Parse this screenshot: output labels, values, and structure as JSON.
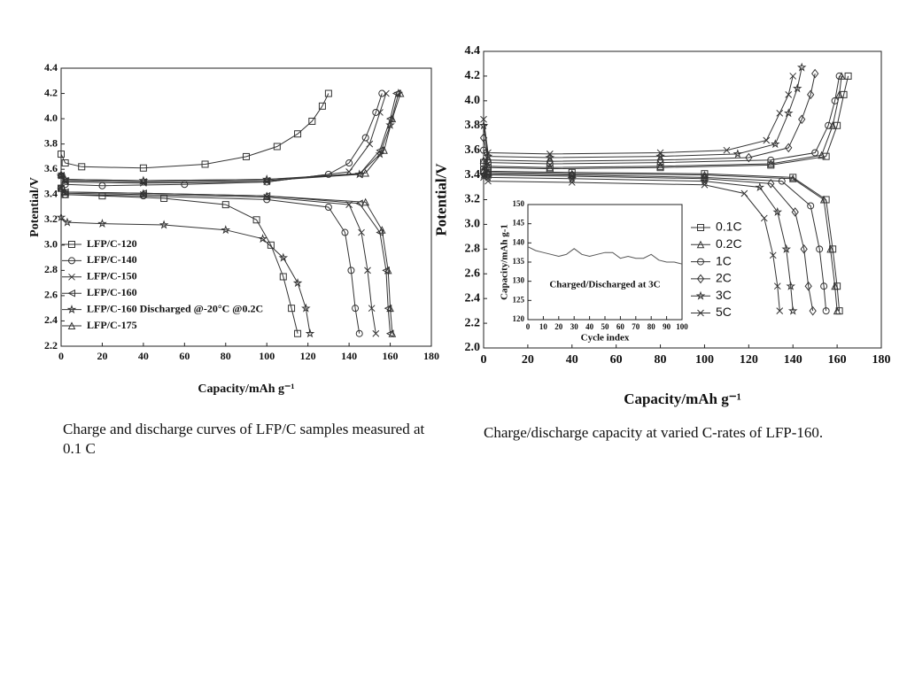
{
  "chart_data": [
    {
      "type": "line",
      "x_label": "Capacity/mAh g⁻¹",
      "y_label": "Potential/V",
      "xlim": [
        0,
        180
      ],
      "ylim": [
        2.2,
        4.4
      ],
      "xticks": [
        0,
        20,
        40,
        60,
        80,
        100,
        120,
        140,
        160,
        180
      ],
      "yticks": [
        2.2,
        2.4,
        2.6,
        2.8,
        {
          "value": 3,
          "label": "3.0"
        },
        3.2,
        3.4,
        3.6,
        3.8,
        {
          "value": 4,
          "label": "4.0"
        },
        4.2,
        4.4
      ],
      "series": [
        {
          "name": "LFP/C-120",
          "color": "#333333",
          "marker": "square",
          "x": [
            0,
            2,
            10,
            40,
            70,
            90,
            105,
            115,
            122,
            127,
            130,
            null,
            0,
            2,
            20,
            50,
            80,
            95,
            102,
            108,
            112,
            115
          ],
          "values": [
            3.72,
            3.65,
            3.62,
            3.61,
            3.64,
            3.7,
            3.78,
            3.88,
            3.98,
            4.1,
            4.2,
            null,
            3.45,
            3.4,
            3.39,
            3.37,
            3.32,
            3.2,
            3.0,
            2.75,
            2.5,
            2.3
          ]
        },
        {
          "name": "LFP/C-140",
          "color": "#333333",
          "marker": "circle",
          "x": [
            0,
            2,
            20,
            60,
            100,
            130,
            140,
            148,
            153,
            156,
            null,
            0,
            2,
            40,
            100,
            130,
            138,
            141,
            143,
            145
          ],
          "values": [
            3.55,
            3.48,
            3.47,
            3.48,
            3.5,
            3.56,
            3.65,
            3.85,
            4.05,
            4.2,
            null,
            3.45,
            3.4,
            3.39,
            3.36,
            3.3,
            3.1,
            2.8,
            2.5,
            2.3
          ]
        },
        {
          "name": "LFP/C-150",
          "color": "#333333",
          "marker": "x",
          "x": [
            0,
            2,
            40,
            100,
            140,
            150,
            155,
            158,
            null,
            0,
            2,
            40,
            100,
            140,
            146,
            149,
            151,
            153
          ],
          "values": [
            3.55,
            3.5,
            3.49,
            3.5,
            3.58,
            3.8,
            4.05,
            4.2,
            null,
            3.45,
            3.41,
            3.4,
            3.38,
            3.32,
            3.1,
            2.8,
            2.5,
            2.3
          ]
        },
        {
          "name": "LFP/C-160",
          "color": "#333333",
          "marker": "tri-left",
          "x": [
            0,
            2,
            40,
            100,
            145,
            155,
            160,
            163,
            null,
            0,
            2,
            40,
            100,
            145,
            155,
            158,
            159,
            160
          ],
          "values": [
            3.55,
            3.51,
            3.5,
            3.51,
            3.56,
            3.75,
            4.0,
            4.2,
            null,
            3.45,
            3.42,
            3.41,
            3.39,
            3.33,
            3.1,
            2.8,
            2.5,
            2.3
          ]
        },
        {
          "name": "LFP/C-160 Discharged @-20°C @0.2C",
          "color": "#333333",
          "marker": "star",
          "x": [
            0,
            2,
            40,
            100,
            145,
            155,
            160,
            164,
            null,
            0,
            3,
            20,
            50,
            80,
            98,
            108,
            115,
            119,
            121
          ],
          "values": [
            3.55,
            3.52,
            3.51,
            3.52,
            3.56,
            3.72,
            3.95,
            4.2,
            null,
            3.22,
            3.18,
            3.17,
            3.16,
            3.12,
            3.05,
            2.9,
            2.7,
            2.5,
            2.3
          ]
        },
        {
          "name": "LFP/C-175",
          "color": "#333333",
          "marker": "triangle",
          "x": [
            0,
            2,
            40,
            100,
            148,
            157,
            161,
            165,
            null,
            0,
            2,
            40,
            100,
            148,
            156,
            159,
            160,
            161
          ],
          "values": [
            3.56,
            3.52,
            3.51,
            3.52,
            3.57,
            3.75,
            4.0,
            4.2,
            null,
            3.45,
            3.42,
            3.41,
            3.39,
            3.34,
            3.12,
            2.8,
            2.5,
            2.3
          ]
        }
      ]
    },
    {
      "type": "line",
      "x_label": "Capacity/mAh g⁻¹",
      "y_label": "Potential/V",
      "xlim": [
        0,
        180
      ],
      "ylim": [
        2.0,
        4.4
      ],
      "xticks": [
        0,
        20,
        40,
        60,
        80,
        100,
        120,
        140,
        160,
        180
      ],
      "yticks": [
        {
          "value": 2,
          "label": "2.0"
        },
        2.2,
        2.4,
        2.6,
        2.8,
        {
          "value": 3,
          "label": "3.0"
        },
        3.2,
        3.4,
        3.6,
        3.8,
        {
          "value": 4,
          "label": "4.0"
        },
        4.2,
        4.4
      ],
      "series": [
        {
          "name": "0.1C",
          "color": "#333333",
          "marker": "square",
          "x": [
            0,
            2,
            30,
            80,
            130,
            155,
            160,
            163,
            165,
            null,
            0,
            2,
            40,
            100,
            140,
            155,
            158,
            160,
            161
          ],
          "values": [
            3.5,
            3.46,
            3.45,
            3.46,
            3.48,
            3.55,
            3.8,
            4.05,
            4.2,
            null,
            3.44,
            3.43,
            3.42,
            3.41,
            3.38,
            3.2,
            2.8,
            2.5,
            2.3
          ]
        },
        {
          "name": "0.2C",
          "color": "#333333",
          "marker": "triangle",
          "x": [
            0,
            2,
            30,
            80,
            130,
            153,
            158,
            161,
            162,
            null,
            0,
            2,
            40,
            100,
            140,
            154,
            157,
            159,
            160
          ],
          "values": [
            3.52,
            3.47,
            3.46,
            3.47,
            3.49,
            3.56,
            3.8,
            4.05,
            4.2,
            null,
            3.44,
            3.42,
            3.41,
            3.4,
            3.37,
            3.2,
            2.8,
            2.5,
            2.3
          ]
        },
        {
          "name": "1C",
          "color": "#333333",
          "marker": "circle",
          "x": [
            0,
            2,
            30,
            80,
            130,
            150,
            156,
            159,
            161,
            null,
            0,
            2,
            40,
            100,
            135,
            148,
            152,
            154,
            155
          ],
          "values": [
            3.6,
            3.5,
            3.49,
            3.5,
            3.52,
            3.58,
            3.8,
            4.0,
            4.2,
            null,
            3.43,
            3.41,
            3.4,
            3.38,
            3.35,
            3.15,
            2.8,
            2.5,
            2.3
          ]
        },
        {
          "name": "2C",
          "color": "#333333",
          "marker": "diamond",
          "x": [
            0,
            2,
            30,
            80,
            120,
            138,
            144,
            148,
            150,
            null,
            0,
            2,
            40,
            100,
            130,
            141,
            145,
            147,
            149
          ],
          "values": [
            3.7,
            3.52,
            3.51,
            3.52,
            3.54,
            3.62,
            3.85,
            4.05,
            4.22,
            null,
            3.42,
            3.4,
            3.39,
            3.37,
            3.33,
            3.1,
            2.8,
            2.5,
            2.3
          ]
        },
        {
          "name": "3C",
          "color": "#333333",
          "marker": "star",
          "x": [
            0,
            2,
            30,
            80,
            115,
            132,
            138,
            142,
            144,
            null,
            0,
            2,
            40,
            100,
            125,
            133,
            137,
            139,
            140
          ],
          "values": [
            3.8,
            3.55,
            3.54,
            3.55,
            3.57,
            3.65,
            3.9,
            4.1,
            4.27,
            null,
            3.4,
            3.38,
            3.37,
            3.35,
            3.3,
            3.1,
            2.8,
            2.5,
            2.3
          ]
        },
        {
          "name": "5C",
          "color": "#333333",
          "marker": "x",
          "x": [
            0,
            2,
            30,
            80,
            110,
            128,
            134,
            138,
            140,
            null,
            0,
            2,
            40,
            100,
            118,
            127,
            131,
            133,
            134
          ],
          "values": [
            3.85,
            3.58,
            3.57,
            3.58,
            3.6,
            3.68,
            3.9,
            4.05,
            4.2,
            null,
            3.38,
            3.35,
            3.34,
            3.32,
            3.25,
            3.05,
            2.75,
            2.5,
            2.3
          ]
        }
      ]
    },
    {
      "type": "line",
      "x_label": "Cycle index",
      "y_label": "Capacity/mAh g-1",
      "annotation": "Charged/Discharged at 3C",
      "xlim": [
        0,
        100
      ],
      "ylim": [
        120,
        150
      ],
      "xticks": [
        0,
        10,
        20,
        30,
        40,
        50,
        60,
        70,
        80,
        90,
        100
      ],
      "yticks": [
        120,
        125,
        130,
        135,
        140,
        145,
        150
      ],
      "color": "#555555",
      "x": [
        0,
        5,
        10,
        15,
        20,
        25,
        30,
        35,
        40,
        45,
        50,
        55,
        60,
        65,
        70,
        75,
        80,
        85,
        90,
        95,
        100
      ],
      "values": [
        139,
        138,
        137.5,
        137,
        136.5,
        137,
        138.5,
        137,
        136.5,
        137,
        137.5,
        137.5,
        136,
        136.5,
        136,
        136,
        137,
        135.5,
        135,
        135,
        134.5
      ]
    }
  ],
  "captions": [
    "Charge and discharge curves of LFP/C samples measured at 0.1 C",
    "Charge/discharge capacity at varied C-rates of LFP-160."
  ]
}
